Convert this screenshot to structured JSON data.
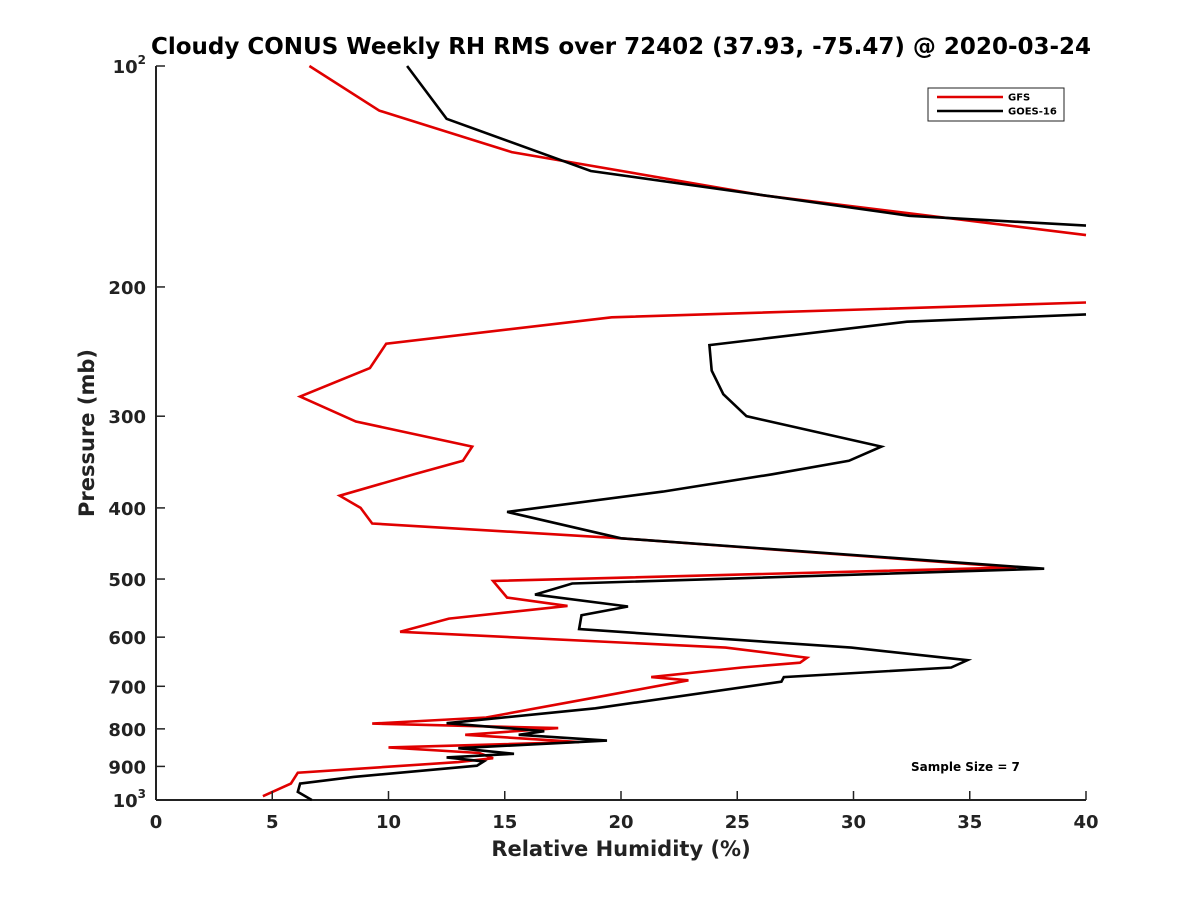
{
  "chart_data": {
    "type": "line",
    "title": "Cloudy CONUS Weekly RH RMS over 72402 (37.93, -75.47) @ 2020-03-24",
    "xlabel": "Relative Humidity (%)",
    "ylabel": "Pressure (mb)",
    "xlim": [
      0,
      40
    ],
    "ylim": [
      100,
      1000
    ],
    "yscale": "log",
    "yreversed": true,
    "x_ticks": [
      "0",
      "5",
      "10",
      "15",
      "20",
      "25",
      "30",
      "35",
      "40"
    ],
    "y_ticks": [
      {
        "value": 100,
        "base": "10",
        "exp": "2"
      },
      {
        "value": 200,
        "label": "200"
      },
      {
        "value": 300,
        "label": "300"
      },
      {
        "value": 400,
        "label": "400"
      },
      {
        "value": 500,
        "label": "500"
      },
      {
        "value": 600,
        "label": "600"
      },
      {
        "value": 700,
        "label": "700"
      },
      {
        "value": 800,
        "label": "800"
      },
      {
        "value": 900,
        "label": "900"
      },
      {
        "value": 1000,
        "base": "10",
        "exp": "3"
      }
    ],
    "legend_position": "top-right",
    "grid": false,
    "annotation": "Sample Size = 7",
    "series": [
      {
        "name": "GFS",
        "color": "#e00000",
        "points": [
          [
            6.6,
            100
          ],
          [
            9.6,
            115
          ],
          [
            15.3,
            131
          ],
          [
            26.1,
            150
          ],
          [
            40,
            170
          ],
          [
            null,
            null
          ],
          [
            40,
            210
          ],
          [
            19.6,
            220
          ],
          [
            9.9,
            239
          ],
          [
            9.2,
            258
          ],
          [
            6.2,
            282
          ],
          [
            8.6,
            305
          ],
          [
            13.6,
            330
          ],
          [
            13.2,
            345
          ],
          [
            11.1,
            360
          ],
          [
            7.9,
            385
          ],
          [
            8.8,
            400
          ],
          [
            9.3,
            420
          ],
          [
            20.0,
            440
          ],
          [
            37.0,
            482
          ],
          [
            14.5,
            503
          ],
          [
            15.1,
            530
          ],
          [
            17.7,
            544
          ],
          [
            12.6,
            566
          ],
          [
            10.5,
            590
          ],
          [
            24.5,
            620
          ],
          [
            28.0,
            640
          ],
          [
            27.7,
            650
          ],
          [
            25.2,
            660
          ],
          [
            21.3,
            680
          ],
          [
            22.9,
            687
          ],
          [
            19.4,
            720
          ],
          [
            14.2,
            772
          ],
          [
            9.3,
            787
          ],
          [
            17.3,
            798
          ],
          [
            13.3,
            815
          ],
          [
            18.2,
            834
          ],
          [
            10.0,
            848
          ],
          [
            13.9,
            863
          ],
          [
            14.5,
            877
          ],
          [
            13.0,
            888
          ],
          [
            6.1,
            918
          ],
          [
            5.8,
            950
          ],
          [
            4.6,
            988
          ]
        ]
      },
      {
        "name": "GOES-16",
        "color": "#000000",
        "points": [
          [
            10.8,
            100
          ],
          [
            12.5,
            118
          ],
          [
            18.7,
            139
          ],
          [
            32.4,
            160
          ],
          [
            40,
            165
          ],
          [
            null,
            null
          ],
          [
            40,
            218
          ],
          [
            32.3,
            223
          ],
          [
            23.8,
            240
          ],
          [
            23.9,
            260
          ],
          [
            24.4,
            280
          ],
          [
            25.4,
            300
          ],
          [
            31.2,
            330
          ],
          [
            29.8,
            345
          ],
          [
            26.5,
            360
          ],
          [
            21.8,
            380
          ],
          [
            15.1,
            405
          ],
          [
            20.0,
            440
          ],
          [
            38.2,
            484
          ],
          [
            17.9,
            507
          ],
          [
            16.3,
            525
          ],
          [
            20.3,
            545
          ],
          [
            18.3,
            560
          ],
          [
            18.2,
            585
          ],
          [
            29.9,
            620
          ],
          [
            34.9,
            645
          ],
          [
            34.2,
            660
          ],
          [
            27.0,
            680
          ],
          [
            26.9,
            690
          ],
          [
            18.9,
            750
          ],
          [
            12.5,
            786
          ],
          [
            16.7,
            806
          ],
          [
            15.6,
            815
          ],
          [
            19.4,
            830
          ],
          [
            13.0,
            850
          ],
          [
            15.4,
            865
          ],
          [
            12.5,
            875
          ],
          [
            14.1,
            886
          ],
          [
            13.8,
            898
          ],
          [
            8.5,
            930
          ],
          [
            6.2,
            950
          ],
          [
            6.1,
            975
          ],
          [
            6.7,
            1000
          ]
        ]
      }
    ]
  }
}
